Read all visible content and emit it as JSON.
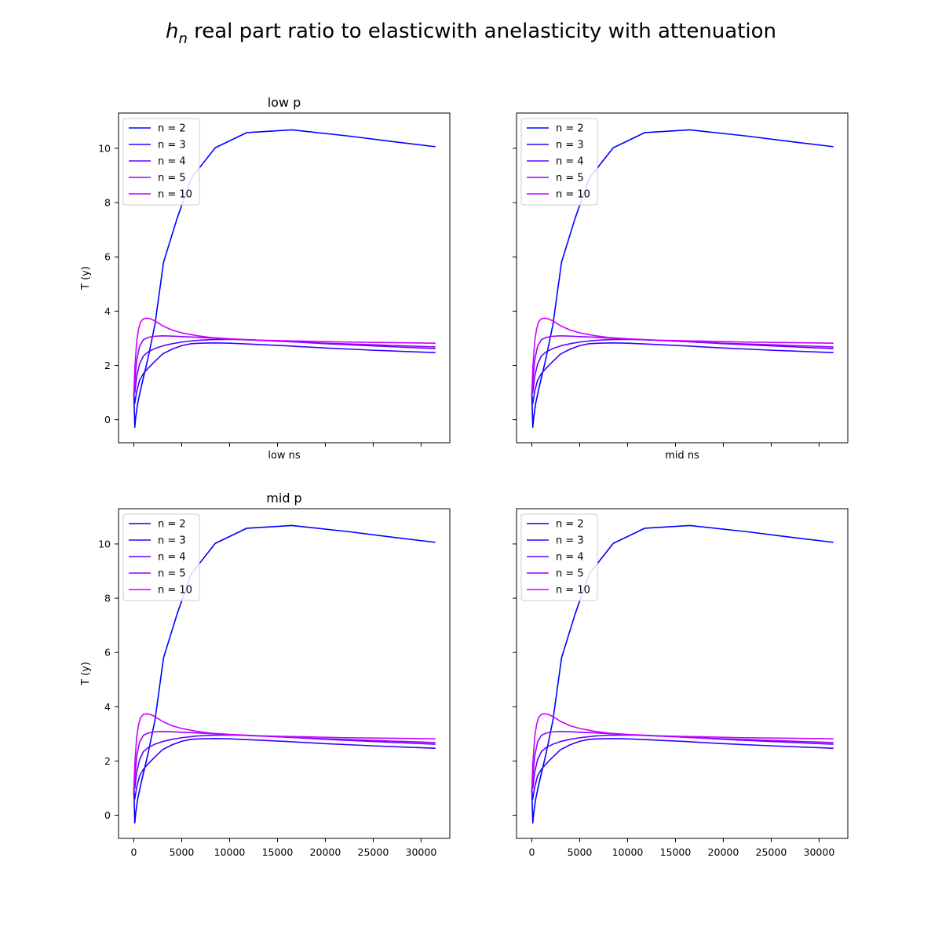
{
  "figure": {
    "title_symbol": "h",
    "title_subscript": "n",
    "title_rest": " real part ratio to elasticwith anelasticity with attenuation"
  },
  "chart_data": [
    {
      "type": "line",
      "title": "low p",
      "xlabel": "low ns",
      "ylabel": "T (y)",
      "xlim": [
        -1600,
        33000
      ],
      "ylim": [
        -0.85,
        11.3
      ],
      "xticks": [
        0,
        5000,
        10000,
        15000,
        20000,
        25000,
        30000
      ],
      "yticks": [
        0,
        2,
        4,
        6,
        8,
        10
      ],
      "show_xtick_labels": false,
      "show_ytick_labels": true,
      "grid": false,
      "legend_position": "upper-left",
      "series": [
        {
          "name": "n = 2",
          "color": "#0000ff",
          "x": [
            0,
            100,
            200,
            400,
            700,
            1000,
            1500,
            2200,
            3100,
            4500,
            6000,
            8500,
            11800,
            16500,
            22500,
            27000,
            31500
          ],
          "y": [
            0.95,
            -0.28,
            0.1,
            0.6,
            1.1,
            1.55,
            2.3,
            3.5,
            5.8,
            7.4,
            8.9,
            10.02,
            10.58,
            10.68,
            10.45,
            10.25,
            10.06
          ]
        },
        {
          "name": "n = 3",
          "color": "#3300ff",
          "x": [
            0,
            100,
            300,
            600,
            1000,
            1500,
            2200,
            3000,
            4000,
            5000,
            6000,
            7000,
            8500,
            10000,
            12500,
            16000,
            20000,
            25000,
            31500
          ],
          "y": [
            0.95,
            0.6,
            1.05,
            1.45,
            1.7,
            1.9,
            2.15,
            2.42,
            2.6,
            2.73,
            2.8,
            2.82,
            2.83,
            2.82,
            2.78,
            2.72,
            2.64,
            2.56,
            2.47
          ]
        },
        {
          "name": "n = 4",
          "color": "#6600ff",
          "x": [
            0,
            100,
            300,
            600,
            1000,
            1500,
            2200,
            3000,
            4000,
            5000,
            6500,
            8000,
            10000,
            12500,
            16000,
            20000,
            25000,
            31500
          ],
          "y": [
            0.95,
            1.0,
            1.6,
            2.05,
            2.35,
            2.5,
            2.62,
            2.72,
            2.8,
            2.86,
            2.92,
            2.95,
            2.96,
            2.94,
            2.88,
            2.8,
            2.72,
            2.62
          ]
        },
        {
          "name": "n = 5",
          "color": "#9900ff",
          "x": [
            0,
            100,
            300,
            600,
            1000,
            1500,
            2000,
            3000,
            4000,
            5000,
            6500,
            8000,
            10000,
            12500,
            16000,
            20000,
            25000,
            31500
          ],
          "y": [
            0.95,
            1.4,
            2.2,
            2.7,
            2.95,
            3.03,
            3.07,
            3.09,
            3.08,
            3.06,
            3.04,
            3.01,
            2.97,
            2.93,
            2.88,
            2.82,
            2.76,
            2.68
          ]
        },
        {
          "name": "n = 10",
          "color": "#cc00ff",
          "x": [
            0,
            100,
            300,
            500,
            700,
            1000,
            1300,
            1700,
            2200,
            3000,
            4000,
            5000,
            6500,
            8000,
            10000,
            13000,
            17000,
            22000,
            27000,
            31500
          ],
          "y": [
            0.95,
            1.9,
            2.9,
            3.35,
            3.6,
            3.72,
            3.74,
            3.72,
            3.64,
            3.46,
            3.3,
            3.2,
            3.1,
            3.03,
            2.98,
            2.93,
            2.9,
            2.86,
            2.84,
            2.82
          ]
        }
      ]
    },
    {
      "type": "line",
      "title": "",
      "xlabel": "mid ns",
      "ylabel": "",
      "xlim": [
        -1600,
        33000
      ],
      "ylim": [
        -0.85,
        11.3
      ],
      "xticks": [
        0,
        5000,
        10000,
        15000,
        20000,
        25000,
        30000
      ],
      "yticks": [
        0,
        2,
        4,
        6,
        8,
        10
      ],
      "show_xtick_labels": false,
      "show_ytick_labels": false,
      "grid": false,
      "legend_position": "upper-left",
      "series": [
        {
          "name": "n = 2",
          "color": "#0000ff",
          "x": [
            0,
            100,
            200,
            400,
            700,
            1000,
            1500,
            2200,
            3100,
            4500,
            6000,
            8500,
            11800,
            16500,
            22500,
            27000,
            31500
          ],
          "y": [
            0.95,
            -0.28,
            0.1,
            0.6,
            1.1,
            1.55,
            2.3,
            3.5,
            5.8,
            7.4,
            8.9,
            10.02,
            10.58,
            10.68,
            10.45,
            10.25,
            10.06
          ]
        },
        {
          "name": "n = 3",
          "color": "#3300ff",
          "x": [
            0,
            100,
            300,
            600,
            1000,
            1500,
            2200,
            3000,
            4000,
            5000,
            6000,
            7000,
            8500,
            10000,
            12500,
            16000,
            20000,
            25000,
            31500
          ],
          "y": [
            0.95,
            0.6,
            1.05,
            1.45,
            1.7,
            1.9,
            2.15,
            2.42,
            2.6,
            2.73,
            2.8,
            2.82,
            2.83,
            2.82,
            2.78,
            2.72,
            2.64,
            2.56,
            2.47
          ]
        },
        {
          "name": "n = 4",
          "color": "#6600ff",
          "x": [
            0,
            100,
            300,
            600,
            1000,
            1500,
            2200,
            3000,
            4000,
            5000,
            6500,
            8000,
            10000,
            12500,
            16000,
            20000,
            25000,
            31500
          ],
          "y": [
            0.95,
            1.0,
            1.6,
            2.05,
            2.35,
            2.5,
            2.62,
            2.72,
            2.8,
            2.86,
            2.92,
            2.95,
            2.96,
            2.94,
            2.88,
            2.8,
            2.72,
            2.62
          ]
        },
        {
          "name": "n = 5",
          "color": "#9900ff",
          "x": [
            0,
            100,
            300,
            600,
            1000,
            1500,
            2000,
            3000,
            4000,
            5000,
            6500,
            8000,
            10000,
            12500,
            16000,
            20000,
            25000,
            31500
          ],
          "y": [
            0.95,
            1.4,
            2.2,
            2.7,
            2.95,
            3.03,
            3.07,
            3.09,
            3.08,
            3.06,
            3.04,
            3.01,
            2.97,
            2.93,
            2.88,
            2.82,
            2.76,
            2.68
          ]
        },
        {
          "name": "n = 10",
          "color": "#cc00ff",
          "x": [
            0,
            100,
            300,
            500,
            700,
            1000,
            1300,
            1700,
            2200,
            3000,
            4000,
            5000,
            6500,
            8000,
            10000,
            13000,
            17000,
            22000,
            27000,
            31500
          ],
          "y": [
            0.95,
            1.9,
            2.9,
            3.35,
            3.6,
            3.72,
            3.74,
            3.72,
            3.64,
            3.46,
            3.3,
            3.2,
            3.1,
            3.03,
            2.98,
            2.93,
            2.9,
            2.86,
            2.84,
            2.82
          ]
        }
      ]
    },
    {
      "type": "line",
      "title": "mid p",
      "xlabel": "",
      "ylabel": "T (y)",
      "xlim": [
        -1600,
        33000
      ],
      "ylim": [
        -0.85,
        11.3
      ],
      "xticks": [
        0,
        5000,
        10000,
        15000,
        20000,
        25000,
        30000
      ],
      "yticks": [
        0,
        2,
        4,
        6,
        8,
        10
      ],
      "show_xtick_labels": true,
      "show_ytick_labels": true,
      "grid": false,
      "legend_position": "upper-left",
      "series": [
        {
          "name": "n = 2",
          "color": "#0000ff",
          "x": [
            0,
            100,
            200,
            400,
            700,
            1000,
            1500,
            2200,
            3100,
            4500,
            6000,
            8500,
            11800,
            16500,
            22500,
            27000,
            31500
          ],
          "y": [
            0.95,
            -0.28,
            0.1,
            0.6,
            1.1,
            1.55,
            2.3,
            3.5,
            5.8,
            7.4,
            8.9,
            10.02,
            10.58,
            10.68,
            10.45,
            10.25,
            10.06
          ]
        },
        {
          "name": "n = 3",
          "color": "#3300ff",
          "x": [
            0,
            100,
            300,
            600,
            1000,
            1500,
            2200,
            3000,
            4000,
            5000,
            6000,
            7000,
            8500,
            10000,
            12500,
            16000,
            20000,
            25000,
            31500
          ],
          "y": [
            0.95,
            0.6,
            1.05,
            1.45,
            1.7,
            1.9,
            2.15,
            2.42,
            2.6,
            2.73,
            2.8,
            2.82,
            2.83,
            2.82,
            2.78,
            2.72,
            2.64,
            2.56,
            2.47
          ]
        },
        {
          "name": "n = 4",
          "color": "#6600ff",
          "x": [
            0,
            100,
            300,
            600,
            1000,
            1500,
            2200,
            3000,
            4000,
            5000,
            6500,
            8000,
            10000,
            12500,
            16000,
            20000,
            25000,
            31500
          ],
          "y": [
            0.95,
            1.0,
            1.6,
            2.05,
            2.35,
            2.5,
            2.62,
            2.72,
            2.8,
            2.86,
            2.92,
            2.95,
            2.96,
            2.94,
            2.88,
            2.8,
            2.72,
            2.62
          ]
        },
        {
          "name": "n = 5",
          "color": "#9900ff",
          "x": [
            0,
            100,
            300,
            600,
            1000,
            1500,
            2000,
            3000,
            4000,
            5000,
            6500,
            8000,
            10000,
            12500,
            16000,
            20000,
            25000,
            31500
          ],
          "y": [
            0.95,
            1.4,
            2.2,
            2.7,
            2.95,
            3.03,
            3.07,
            3.09,
            3.08,
            3.06,
            3.04,
            3.01,
            2.97,
            2.93,
            2.88,
            2.82,
            2.76,
            2.68
          ]
        },
        {
          "name": "n = 10",
          "color": "#cc00ff",
          "x": [
            0,
            100,
            300,
            500,
            700,
            1000,
            1300,
            1700,
            2200,
            3000,
            4000,
            5000,
            6500,
            8000,
            10000,
            13000,
            17000,
            22000,
            27000,
            31500
          ],
          "y": [
            0.95,
            1.9,
            2.9,
            3.35,
            3.6,
            3.72,
            3.74,
            3.72,
            3.64,
            3.46,
            3.3,
            3.2,
            3.1,
            3.03,
            2.98,
            2.93,
            2.9,
            2.86,
            2.84,
            2.82
          ]
        }
      ]
    },
    {
      "type": "line",
      "title": "",
      "xlabel": "",
      "ylabel": "",
      "xlim": [
        -1600,
        33000
      ],
      "ylim": [
        -0.85,
        11.3
      ],
      "xticks": [
        0,
        5000,
        10000,
        15000,
        20000,
        25000,
        30000
      ],
      "yticks": [
        0,
        2,
        4,
        6,
        8,
        10
      ],
      "show_xtick_labels": true,
      "show_ytick_labels": false,
      "grid": false,
      "legend_position": "upper-left",
      "series": [
        {
          "name": "n = 2",
          "color": "#0000ff",
          "x": [
            0,
            100,
            200,
            400,
            700,
            1000,
            1500,
            2200,
            3100,
            4500,
            6000,
            8500,
            11800,
            16500,
            22500,
            27000,
            31500
          ],
          "y": [
            0.95,
            -0.28,
            0.1,
            0.6,
            1.1,
            1.55,
            2.3,
            3.5,
            5.8,
            7.4,
            8.9,
            10.02,
            10.58,
            10.68,
            10.45,
            10.25,
            10.06
          ]
        },
        {
          "name": "n = 3",
          "color": "#3300ff",
          "x": [
            0,
            100,
            300,
            600,
            1000,
            1500,
            2200,
            3000,
            4000,
            5000,
            6000,
            7000,
            8500,
            10000,
            12500,
            16000,
            20000,
            25000,
            31500
          ],
          "y": [
            0.95,
            0.6,
            1.05,
            1.45,
            1.7,
            1.9,
            2.15,
            2.42,
            2.6,
            2.73,
            2.8,
            2.82,
            2.83,
            2.82,
            2.78,
            2.72,
            2.64,
            2.56,
            2.47
          ]
        },
        {
          "name": "n = 4",
          "color": "#6600ff",
          "x": [
            0,
            100,
            300,
            600,
            1000,
            1500,
            2200,
            3000,
            4000,
            5000,
            6500,
            8000,
            10000,
            12500,
            16000,
            20000,
            25000,
            31500
          ],
          "y": [
            0.95,
            1.0,
            1.6,
            2.05,
            2.35,
            2.5,
            2.62,
            2.72,
            2.8,
            2.86,
            2.92,
            2.95,
            2.96,
            2.94,
            2.88,
            2.8,
            2.72,
            2.62
          ]
        },
        {
          "name": "n = 5",
          "color": "#9900ff",
          "x": [
            0,
            100,
            300,
            600,
            1000,
            1500,
            2000,
            3000,
            4000,
            5000,
            6500,
            8000,
            10000,
            12500,
            16000,
            20000,
            25000,
            31500
          ],
          "y": [
            0.95,
            1.4,
            2.2,
            2.7,
            2.95,
            3.03,
            3.07,
            3.09,
            3.08,
            3.06,
            3.04,
            3.01,
            2.97,
            2.93,
            2.88,
            2.82,
            2.76,
            2.68
          ]
        },
        {
          "name": "n = 10",
          "color": "#cc00ff",
          "x": [
            0,
            100,
            300,
            500,
            700,
            1000,
            1300,
            1700,
            2200,
            3000,
            4000,
            5000,
            6500,
            8000,
            10000,
            13000,
            17000,
            22000,
            27000,
            31500
          ],
          "y": [
            0.95,
            1.9,
            2.9,
            3.35,
            3.6,
            3.72,
            3.74,
            3.72,
            3.64,
            3.46,
            3.3,
            3.2,
            3.1,
            3.03,
            2.98,
            2.93,
            2.9,
            2.86,
            2.84,
            2.82
          ]
        }
      ]
    }
  ]
}
